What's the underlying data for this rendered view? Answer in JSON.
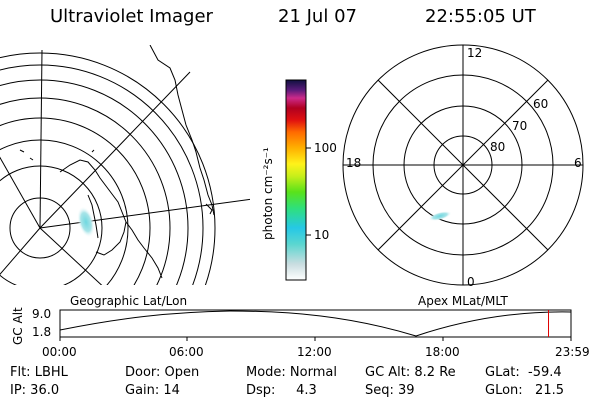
{
  "header": {
    "instrument": "Ultraviolet Imager",
    "date": "21 Jul 07",
    "time": "22:55:05 UT"
  },
  "colorbar": {
    "unit_label": "photon cm⁻²s⁻¹",
    "ticks": [
      "100",
      "10"
    ]
  },
  "left_panel": {
    "label": "Geographic Lat/Lon"
  },
  "right_panel": {
    "label": "Apex  MLat/MLT",
    "mlt_labels": {
      "top": "12",
      "left": "18",
      "right": "6",
      "bottom": "0"
    },
    "lat_labels": [
      "60",
      "70",
      "80"
    ]
  },
  "timeline": {
    "ylabel": "GC Alt",
    "y_ticks": [
      "9.0",
      "1.8"
    ],
    "x_ticks": [
      "00:00",
      "06:00",
      "12:00",
      "18:00",
      "23:59"
    ],
    "current_time_fraction": 0.956
  },
  "info": {
    "flt": "Flt: LBHL",
    "ip": "IP: 36.0",
    "door": "Door: Open",
    "gain": "Gain: 14",
    "mode": "Mode: Normal",
    "dsp": "Dsp:     4.3",
    "gcalt": "GC Alt: 8.2 Re",
    "seq": "Seq: 39",
    "glat": "GLat:  -59.4",
    "glon": "GLon:   21.5"
  }
}
